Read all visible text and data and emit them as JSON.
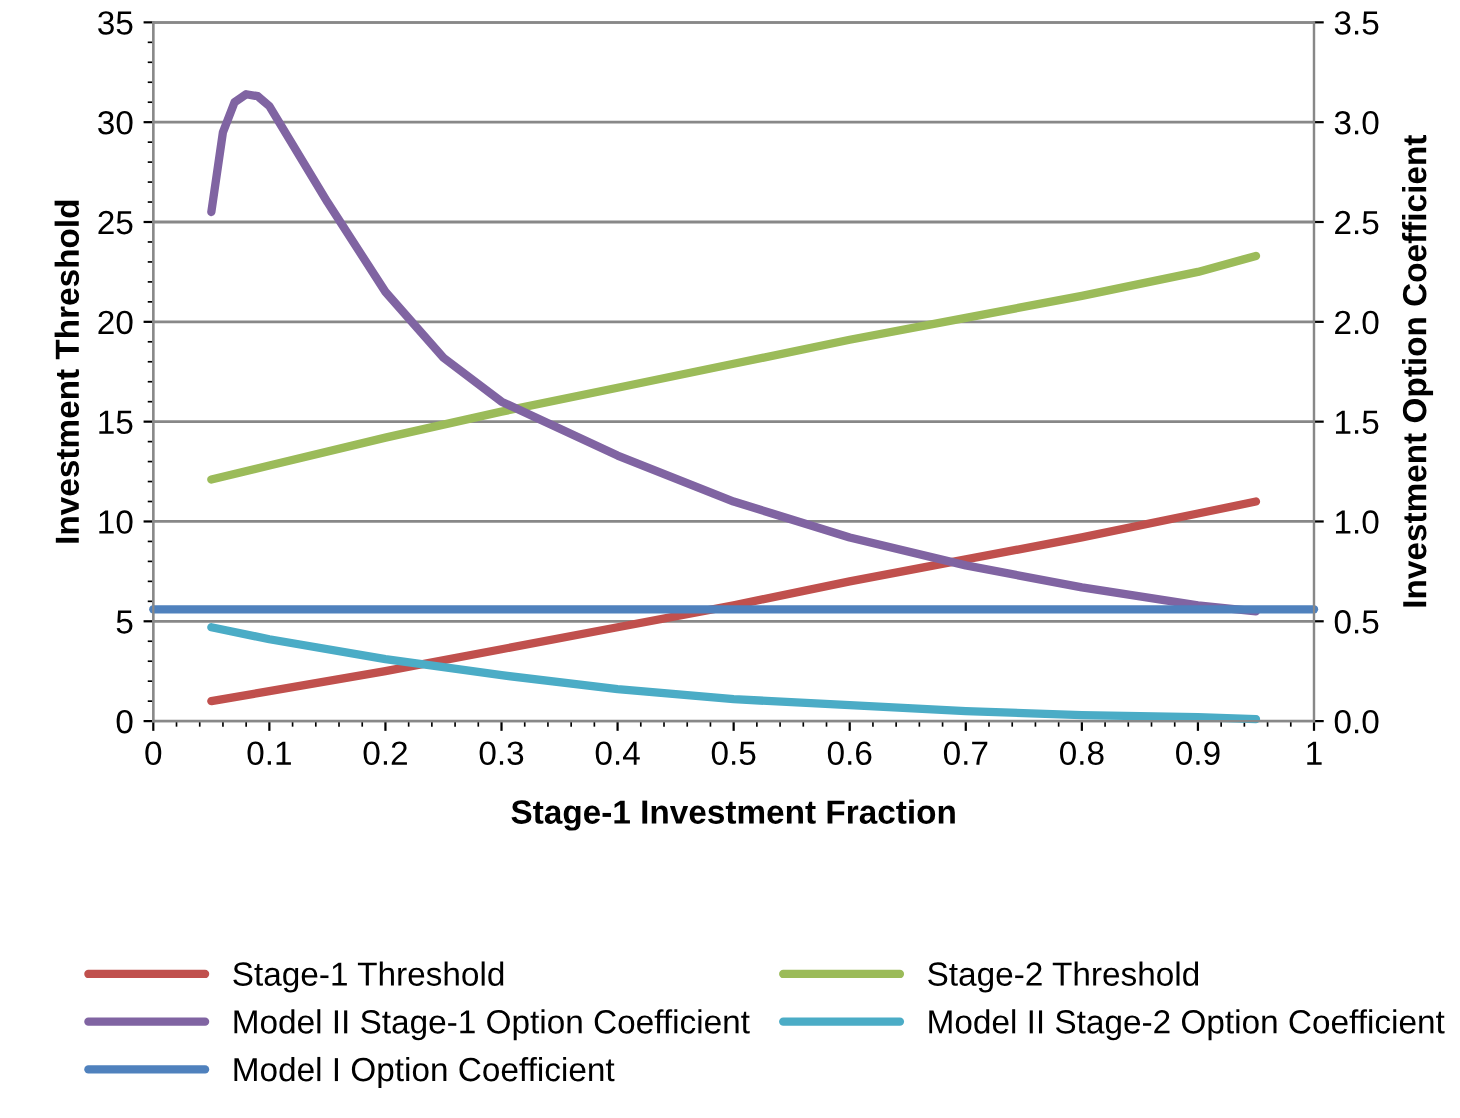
{
  "chart_data": {
    "type": "line",
    "xlabel": "Stage-1 Investment Fraction",
    "ylabel": "Investment Threshold",
    "y2label": "Investment Option Coefficient",
    "x": [
      0.05,
      0.1,
      0.2,
      0.3,
      0.4,
      0.5,
      0.6,
      0.7,
      0.8,
      0.9,
      0.95
    ],
    "series": [
      {
        "name": "Stage-1 Threshold",
        "color": "#c0504d",
        "values": [
          1.0,
          1.5,
          2.5,
          3.6,
          4.7,
          5.8,
          7.0,
          8.1,
          9.2,
          10.4,
          11.0
        ]
      },
      {
        "name": "Stage-2 Threshold",
        "color": "#9bbb59",
        "values": [
          12.1,
          12.8,
          14.2,
          15.5,
          16.7,
          17.9,
          19.1,
          20.2,
          21.3,
          22.5,
          23.3
        ]
      },
      {
        "name": "Model II Stage-1 Option Coefficient",
        "color": "#8064a2",
        "axis": "y2",
        "x": [
          0.05,
          0.06,
          0.07,
          0.08,
          0.09,
          0.1,
          0.15,
          0.2,
          0.25,
          0.3,
          0.4,
          0.5,
          0.6,
          0.7,
          0.8,
          0.9,
          0.95
        ],
        "values": [
          2.55,
          2.95,
          3.1,
          3.14,
          3.13,
          3.08,
          2.6,
          2.15,
          1.82,
          1.6,
          1.33,
          1.1,
          0.92,
          0.78,
          0.67,
          0.58,
          0.55
        ]
      },
      {
        "name": "Model II Stage-2 Option Coefficient",
        "color": "#4bacc6",
        "axis": "y2",
        "values": [
          0.47,
          0.41,
          0.31,
          0.23,
          0.16,
          0.11,
          0.08,
          0.05,
          0.03,
          0.02,
          0.01
        ]
      },
      {
        "name": "Model I Option Coefficient",
        "color": "#4f81bd",
        "axis": "y2",
        "x": [
          0,
          1
        ],
        "values": [
          0.56,
          0.56
        ]
      }
    ],
    "xlim": [
      0,
      1
    ],
    "xticks": [
      0,
      0.1,
      0.2,
      0.3,
      0.4,
      0.5,
      0.6,
      0.7,
      0.8,
      0.9,
      1
    ],
    "ylim": [
      0,
      35
    ],
    "yticks": [
      0,
      5,
      10,
      15,
      20,
      25,
      30,
      35
    ],
    "y2lim": [
      0,
      3.5
    ],
    "y2ticks": [
      {
        "value": 0,
        "label": "0.0"
      },
      {
        "value": 0.5,
        "label": "0.5"
      },
      {
        "value": 1,
        "label": "1.0"
      },
      {
        "value": 1.5,
        "label": "1.5"
      },
      {
        "value": 2,
        "label": "2.0"
      },
      {
        "value": 2.5,
        "label": "2.5"
      },
      {
        "value": 3,
        "label": "3.0"
      },
      {
        "value": 3.5,
        "label": "3.5"
      }
    ],
    "grid": "y",
    "legend": "bottom",
    "marker": "none",
    "line_style": "solid"
  }
}
